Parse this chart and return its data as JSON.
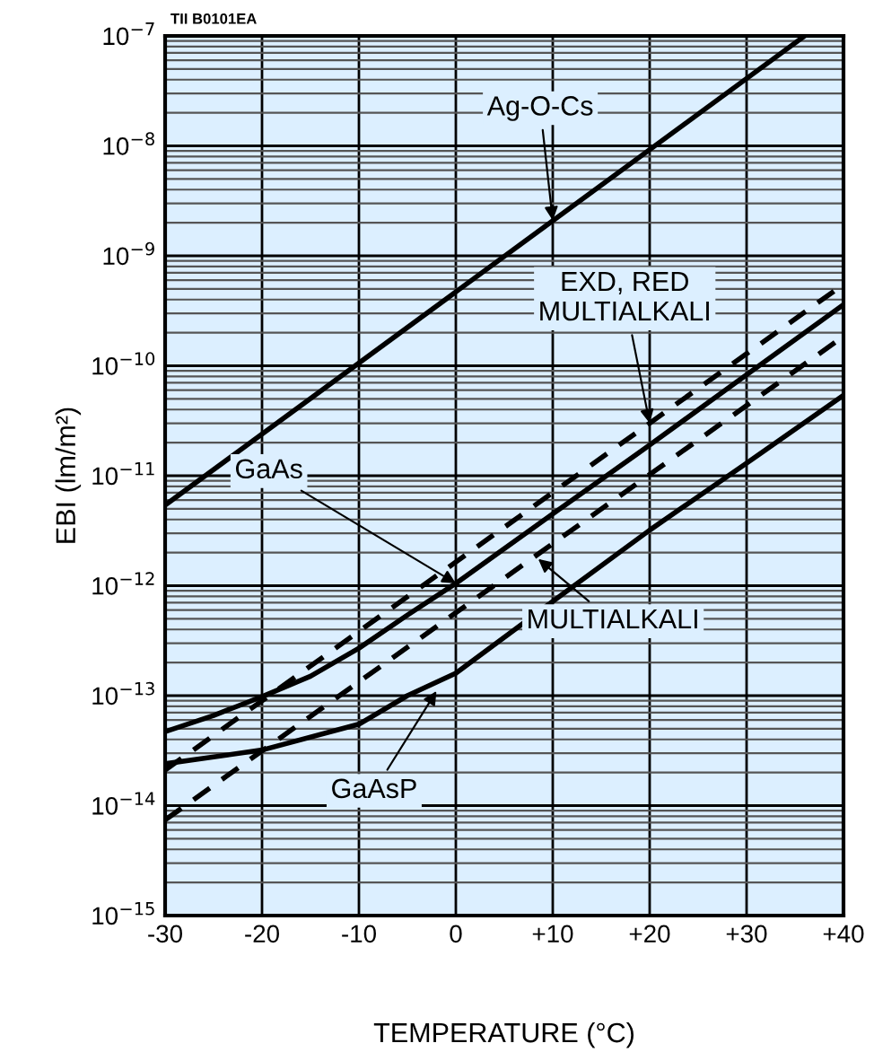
{
  "chart_data": {
    "type": "line",
    "xlabel": "TEMPERATURE (°C)",
    "ylabel": "EBI (lm/m²)",
    "log": "y",
    "grid": true,
    "marker": "none",
    "line_style": "solid",
    "xlim": [
      -30,
      40
    ],
    "ylim": [
      1e-15,
      1e-07
    ],
    "xticks": [
      {
        "value": -30,
        "label": "-30"
      },
      {
        "value": -20,
        "label": "-20"
      },
      {
        "value": -10,
        "label": "-10"
      },
      0,
      {
        "value": 10,
        "label": "+10"
      },
      {
        "value": 20,
        "label": "+20"
      },
      {
        "value": 30,
        "label": "+30"
      },
      {
        "value": 40,
        "label": "+40"
      }
    ],
    "yticks": [
      {
        "value": 1e-15,
        "label": "10$^{−15}$"
      },
      {
        "value": 1e-14,
        "label": "10$^{−14}$"
      },
      {
        "value": 1e-13,
        "label": "10$^{−13}$"
      },
      {
        "value": 1e-12,
        "label": "10$^{−12}$"
      },
      {
        "value": 1e-11,
        "label": "10$^{−11}$"
      },
      {
        "value": 1e-10,
        "label": "10$^{−10}$"
      },
      {
        "value": 1e-09,
        "label": "10$^{−9}$"
      },
      {
        "value": 1e-08,
        "label": "10$^{−8}$"
      },
      {
        "value": 1e-07,
        "label": "10$^{−7}$"
      }
    ],
    "series": [
      {
        "color": "#000000",
        "x": [
          -30,
          36
        ],
        "values": [
          5.4e-12,
          1e-07
        ]
      },
      {
        "color": "#000000",
        "line_style": "dashed",
        "x": [
          -30,
          40
        ],
        "values": [
          2.1e-14,
          5.5e-10
        ]
      },
      {
        "color": "#000000",
        "x": [
          -30,
          -25,
          -20,
          -15,
          -10,
          -5,
          0,
          10,
          20,
          30,
          40
        ],
        "values": [
          4.7e-14,
          6.6e-14,
          9.8e-14,
          1.5e-13,
          2.7e-13,
          5.4e-13,
          1.05e-12,
          4.5e-12,
          1.9e-11,
          8.3e-11,
          3.6e-10
        ]
      },
      {
        "color": "#000000",
        "line_style": "dashed",
        "x": [
          -30,
          40
        ],
        "values": [
          7.4e-15,
          1.85e-10
        ]
      },
      {
        "color": "#000000",
        "x": [
          -30,
          -20,
          -10,
          -5,
          0,
          10,
          20,
          30,
          40
        ],
        "values": [
          2.4e-14,
          3.2e-14,
          5.5e-14,
          1e-13,
          1.6e-13,
          7.2e-13,
          3.2e-12,
          1.3e-11,
          5.4e-11
        ]
      }
    ],
    "annotations": [
      "TII B0101EA",
      {
        "text": "Ag-O-Cs",
        "x": 10,
        "y": 2.1e-09
      },
      {
        "text": "EXD, RED\nMULTIALKALI",
        "x": 20,
        "y": 3e-11
      },
      {
        "text": "GaAs",
        "x": 0,
        "y": 1.05e-12
      },
      {
        "text": "MULTIALKALI",
        "x": 8.5,
        "y": 1.75e-12
      },
      {
        "text": "GaAsP",
        "x": -2,
        "y": 1.1e-13
      }
    ]
  }
}
